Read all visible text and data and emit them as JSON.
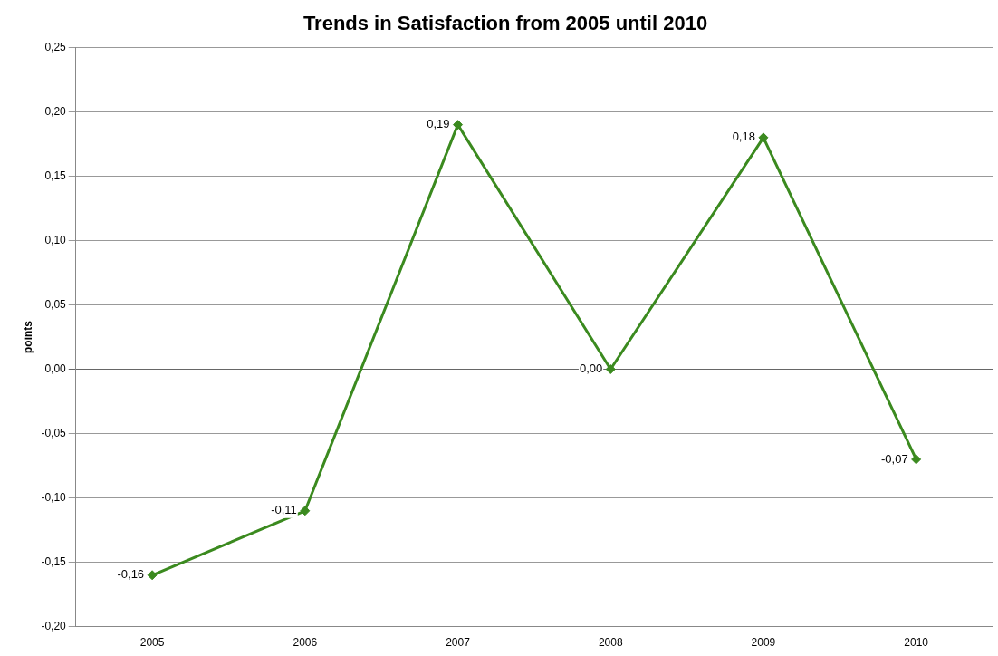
{
  "chart_data": {
    "type": "line",
    "title": "Trends in Satisfaction from 2005 until 2010",
    "ylabel": "points",
    "categories": [
      "2005",
      "2006",
      "2007",
      "2008",
      "2009",
      "2010"
    ],
    "series": [
      {
        "color": "#3b8a1f",
        "values": [
          -0.16,
          -0.11,
          0.19,
          0.0,
          0.18,
          -0.07
        ],
        "value_labels": [
          "-0,16",
          "-0,11",
          "0,19",
          "0,00",
          "0,18",
          "-0,07"
        ]
      }
    ],
    "ylim": [
      -0.2,
      0.25
    ],
    "yticks": [
      {
        "value": -0.2,
        "label": "-0,20"
      },
      {
        "value": -0.15,
        "label": "-0,15"
      },
      {
        "value": -0.1,
        "label": "-0,10"
      },
      {
        "value": -0.05,
        "label": "-0,05"
      },
      {
        "value": 0,
        "label": "0,00"
      },
      {
        "value": 0.05,
        "label": "0,05"
      },
      {
        "value": 0.1,
        "label": "0,10"
      },
      {
        "value": 0.15,
        "label": "0,15"
      },
      {
        "value": 0.2,
        "label": "0,20"
      },
      {
        "value": 0.25,
        "label": "0,25"
      }
    ],
    "grid": "y",
    "legend": false,
    "marker": "diamond",
    "line_style": "solid"
  }
}
